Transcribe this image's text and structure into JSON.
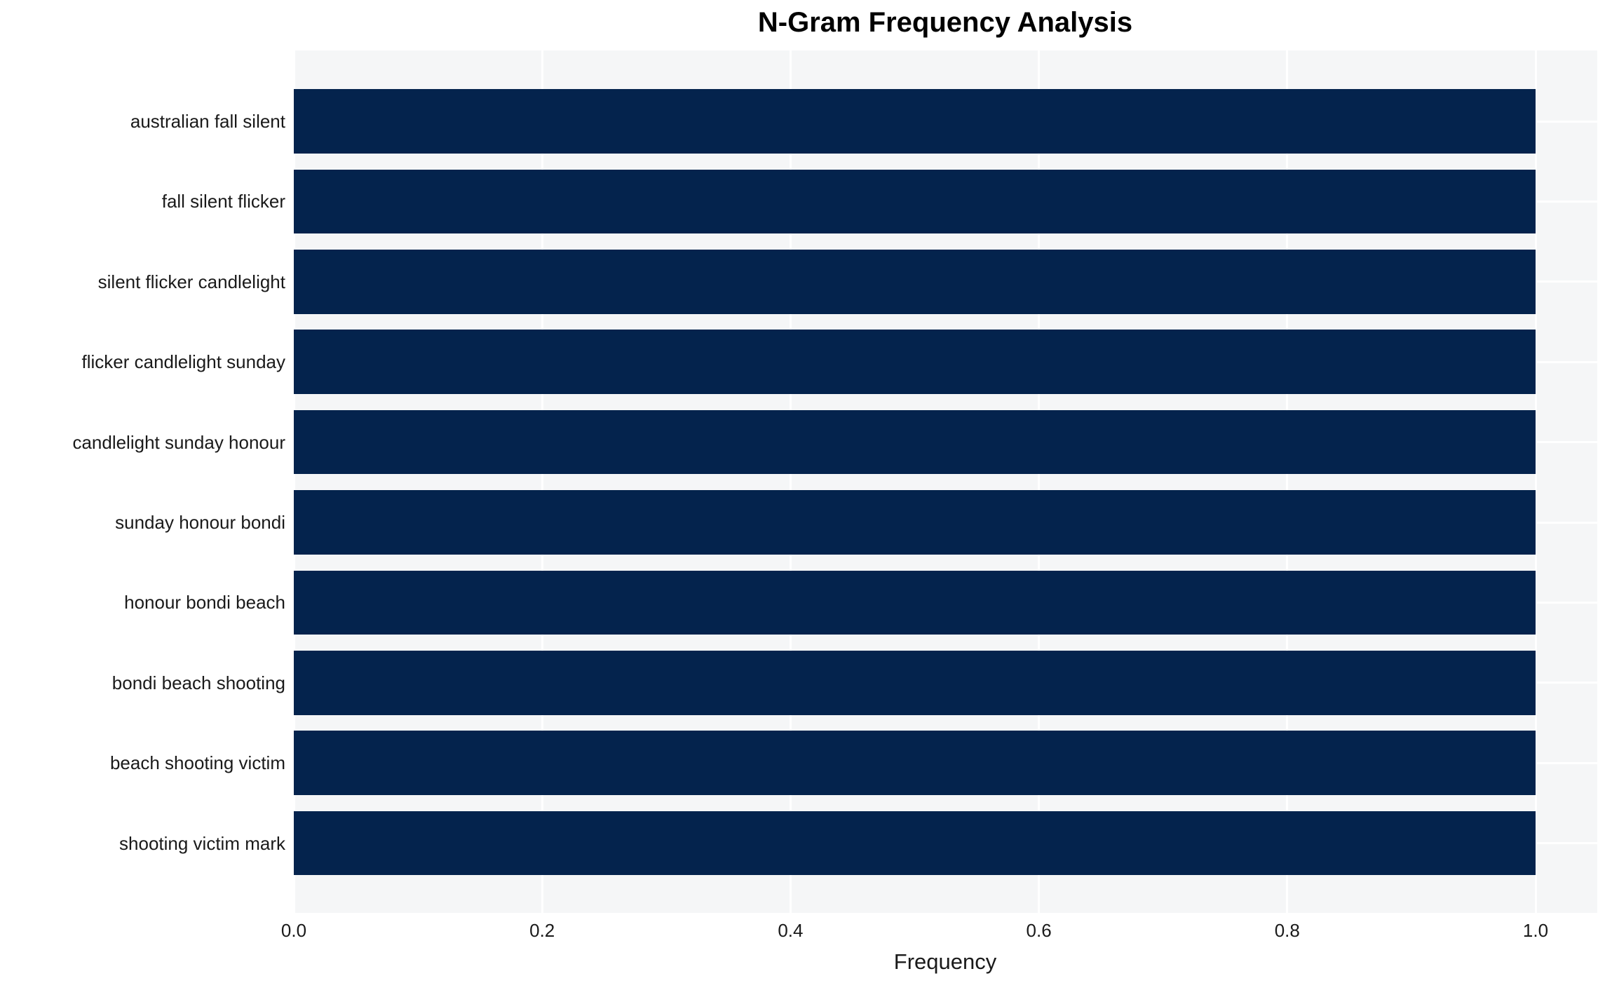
{
  "chart_data": {
    "type": "bar",
    "orientation": "horizontal",
    "title": "N-Gram Frequency Analysis",
    "xlabel": "Frequency",
    "ylabel": "",
    "categories": [
      "australian fall silent",
      "fall silent flicker",
      "silent flicker candlelight",
      "flicker candlelight sunday",
      "candlelight sunday honour",
      "sunday honour bondi",
      "honour bondi beach",
      "bondi beach shooting",
      "beach shooting victim",
      "shooting victim mark"
    ],
    "values": [
      1.0,
      1.0,
      1.0,
      1.0,
      1.0,
      1.0,
      1.0,
      1.0,
      1.0,
      1.0
    ],
    "xlim": [
      0.0,
      1.05
    ],
    "xticks": [
      0.0,
      0.2,
      0.4,
      0.6,
      0.8,
      1.0
    ],
    "xtick_labels": [
      "0.0",
      "0.2",
      "0.4",
      "0.6",
      "0.8",
      "1.0"
    ],
    "grid": true,
    "legend": false,
    "bar_color": "#04234d",
    "plot_bg_color": "#f5f6f7",
    "grid_color": "#ffffff",
    "text_color": "#1a1a1a"
  }
}
